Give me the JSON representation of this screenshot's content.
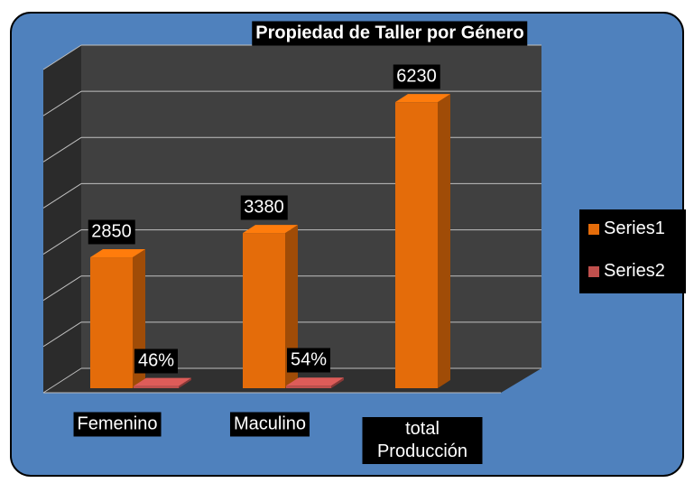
{
  "chart_data": {
    "type": "bar",
    "title": "Propiedad de Taller por Género",
    "categories": [
      "Femenino",
      "Maculino",
      "total Producción"
    ],
    "series": [
      {
        "name": "Series1",
        "color": "#e46c0a",
        "values": [
          2850,
          3380,
          6230
        ]
      },
      {
        "name": "Series2",
        "color": "#c0504d",
        "values": [
          46,
          54,
          null
        ],
        "value_labels": [
          "46%",
          "54%",
          null
        ]
      }
    ],
    "ylim": [
      0,
      7000
    ],
    "yticks": [
      0,
      1000,
      2000,
      3000,
      4000,
      5000,
      6000,
      7000
    ],
    "grid": true,
    "legend": "right"
  }
}
